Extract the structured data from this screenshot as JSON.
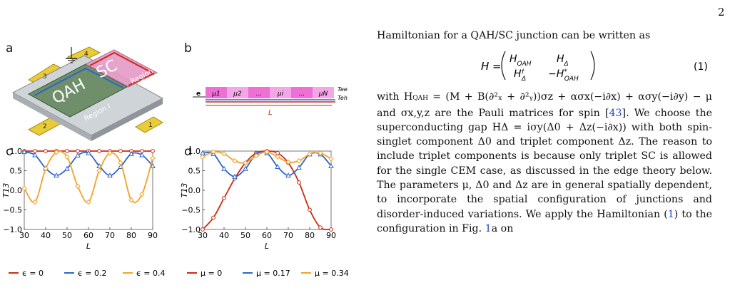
{
  "page_number": "2",
  "panel_labels": {
    "a": "a",
    "b": "b",
    "c": "c",
    "d": "d"
  },
  "fig_a": {
    "qah_label": "QAH",
    "sc_label": "SC",
    "region1": "Region I",
    "region2": "Region II",
    "leads": [
      "1",
      "2",
      "3",
      "4"
    ]
  },
  "fig_b": {
    "incoming": "e",
    "sites": [
      "μ1",
      "μ2",
      "...",
      "μi",
      "...",
      "μN"
    ],
    "out_ee": "Tee",
    "out_eh": "Teh",
    "length": "L"
  },
  "colors": {
    "red": "#cc2a10",
    "blue": "#2f63c9",
    "orange": "#f2a227"
  },
  "chart_data": [
    {
      "type": "line",
      "panel": "c",
      "ylabel": "T13",
      "xlabel": "L",
      "xlim": [
        30,
        90
      ],
      "ylim": [
        -1,
        1
      ],
      "xticks": [
        30,
        40,
        50,
        60,
        70,
        80,
        90
      ],
      "yticks": [
        "1.0",
        "0.5",
        "0.0",
        "−0.5",
        "−1.0"
      ],
      "series": [
        {
          "name": "ϵ = 0",
          "color": "#cc2a10",
          "marker": "circle",
          "x": [
            30,
            35,
            40,
            45,
            50,
            55,
            60,
            65,
            70,
            75,
            80,
            85,
            90
          ],
          "values": [
            1,
            1,
            1,
            1,
            1,
            1,
            1,
            1,
            1,
            1,
            1,
            1,
            1
          ]
        },
        {
          "name": "ϵ = 0.2",
          "color": "#2f63c9",
          "marker": "triangle",
          "x": [
            30,
            35,
            40,
            45,
            50,
            55,
            60,
            65,
            70,
            75,
            80,
            85,
            90
          ],
          "values": [
            0.98,
            0.9,
            0.56,
            0.38,
            0.55,
            0.89,
            0.95,
            0.62,
            0.38,
            0.6,
            0.93,
            0.9,
            0.62
          ]
        },
        {
          "name": "ϵ = 0.4",
          "color": "#f2a227",
          "marker": "diamond",
          "x": [
            30,
            35,
            40,
            45,
            50,
            55,
            60,
            65,
            70,
            75,
            80,
            85,
            90
          ],
          "values": [
            0.05,
            -0.3,
            0.55,
            0.97,
            0.85,
            0.1,
            -0.3,
            0.5,
            0.95,
            0.7,
            -0.25,
            -0.1,
            0.82
          ]
        }
      ]
    },
    {
      "type": "line",
      "panel": "d",
      "ylabel": "T13",
      "xlabel": "L",
      "xlim": [
        30,
        90
      ],
      "ylim": [
        -1,
        1
      ],
      "xticks": [
        30,
        40,
        50,
        60,
        70,
        80,
        90
      ],
      "yticks": [
        "1.0",
        "0.5",
        "0.0",
        "−0.5",
        "−1.0"
      ],
      "series": [
        {
          "name": "μ = 0",
          "color": "#cc2a10",
          "marker": "circle",
          "x": [
            30,
            35,
            40,
            45,
            50,
            55,
            60,
            65,
            70,
            75,
            80,
            85,
            90
          ],
          "values": [
            -1,
            -0.7,
            -0.2,
            0.3,
            0.7,
            0.95,
            1,
            0.95,
            0.7,
            0.2,
            -0.5,
            -0.95,
            -1
          ]
        },
        {
          "name": "μ = 0.17",
          "color": "#2f63c9",
          "marker": "triangle",
          "x": [
            30,
            35,
            40,
            45,
            50,
            55,
            60,
            65,
            70,
            75,
            80,
            85,
            90
          ],
          "values": [
            0.95,
            0.93,
            0.55,
            0.35,
            0.55,
            0.92,
            0.95,
            0.6,
            0.38,
            0.58,
            0.92,
            0.92,
            0.62
          ]
        },
        {
          "name": "μ = 0.34",
          "color": "#f2a227",
          "marker": "diamond",
          "x": [
            30,
            35,
            40,
            45,
            50,
            55,
            60,
            65,
            70,
            75,
            80,
            85,
            90
          ],
          "values": [
            0.85,
            0.98,
            0.93,
            0.75,
            0.7,
            0.88,
            0.98,
            0.85,
            0.72,
            0.75,
            0.92,
            0.95,
            0.8
          ]
        }
      ]
    }
  ],
  "text": {
    "line1": "Hamiltonian for a QAH/SC junction can be written as",
    "eq_number": "(1)",
    "body_1": "with H",
    "body_2": " = (M + B(∂²ₓ + ∂²ᵧ))σz + ασx(−i∂x) + ασy(−i∂y) − μ and σx,y,z are the Pauli matrices for spin [",
    "ref43": "43",
    "body_3": "]. We choose the superconducting gap HΔ = iσy(Δ0 + Δz(−i∂x)) with both spin-singlet component Δ0 and triplet component Δz. The reason to include triplet components is because only triplet SC is allowed for the single CEM case, as discussed in the edge theory below. The parameters μ, Δ0 and Δz are in general spatially dependent, to incorporate the spatial configuration of junctions and disorder-induced variations. We apply the Hamiltonian (",
    "ref_eq": "1",
    "body_4": ") to the configuration in Fig. ",
    "ref_fig": "1",
    "body_5": "a on"
  }
}
